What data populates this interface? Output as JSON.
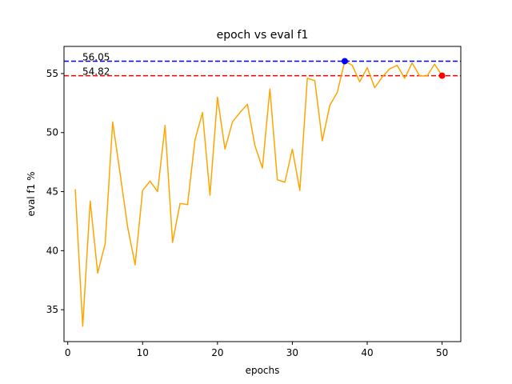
{
  "chart_data": {
    "type": "line",
    "title": "epoch vs eval f1",
    "xlabel": "epochs",
    "ylabel": "eval f1 %",
    "xlim": [
      -0.5,
      52.5
    ],
    "ylim": [
      32.3,
      57.3
    ],
    "xticks": [
      0,
      10,
      20,
      30,
      40,
      50
    ],
    "yticks": [
      35,
      40,
      45,
      50,
      55
    ],
    "grid": false,
    "line_color": "#ffa500",
    "series": [
      {
        "x": [
          1,
          2,
          3,
          4,
          5,
          6,
          7,
          8,
          9,
          10,
          11,
          12,
          13,
          14,
          15,
          16,
          17,
          18,
          19,
          20,
          21,
          22,
          23,
          24,
          25,
          26,
          27,
          28,
          29,
          30,
          31,
          32,
          33,
          34,
          35,
          36,
          37,
          38,
          39,
          40,
          41,
          42,
          43,
          44,
          45,
          46,
          47,
          48,
          49,
          50
        ],
        "y": [
          45.2,
          33.6,
          44.2,
          38.1,
          40.6,
          50.9,
          46.5,
          42.0,
          38.8,
          45.1,
          45.9,
          45.0,
          50.6,
          40.7,
          44.0,
          43.9,
          49.4,
          51.7,
          44.7,
          53.0,
          48.6,
          50.9,
          51.7,
          52.4,
          48.9,
          47.0,
          53.7,
          46.0,
          45.8,
          48.6,
          45.1,
          54.6,
          54.4,
          49.3,
          52.3,
          53.4,
          56.05,
          55.7,
          54.3,
          55.5,
          53.8,
          54.7,
          55.4,
          55.7,
          54.6,
          55.9,
          54.8,
          54.8,
          55.8,
          54.82
        ]
      }
    ],
    "reference_lines": [
      {
        "value": 56.05,
        "label": "56.05",
        "color": "#0000ff"
      },
      {
        "value": 54.82,
        "label": "54.82",
        "color": "#ff0000"
      }
    ],
    "markers": [
      {
        "x": 37,
        "y": 56.05,
        "color": "#0000ff"
      },
      {
        "x": 50,
        "y": 54.82,
        "color": "#ff0000"
      }
    ]
  }
}
